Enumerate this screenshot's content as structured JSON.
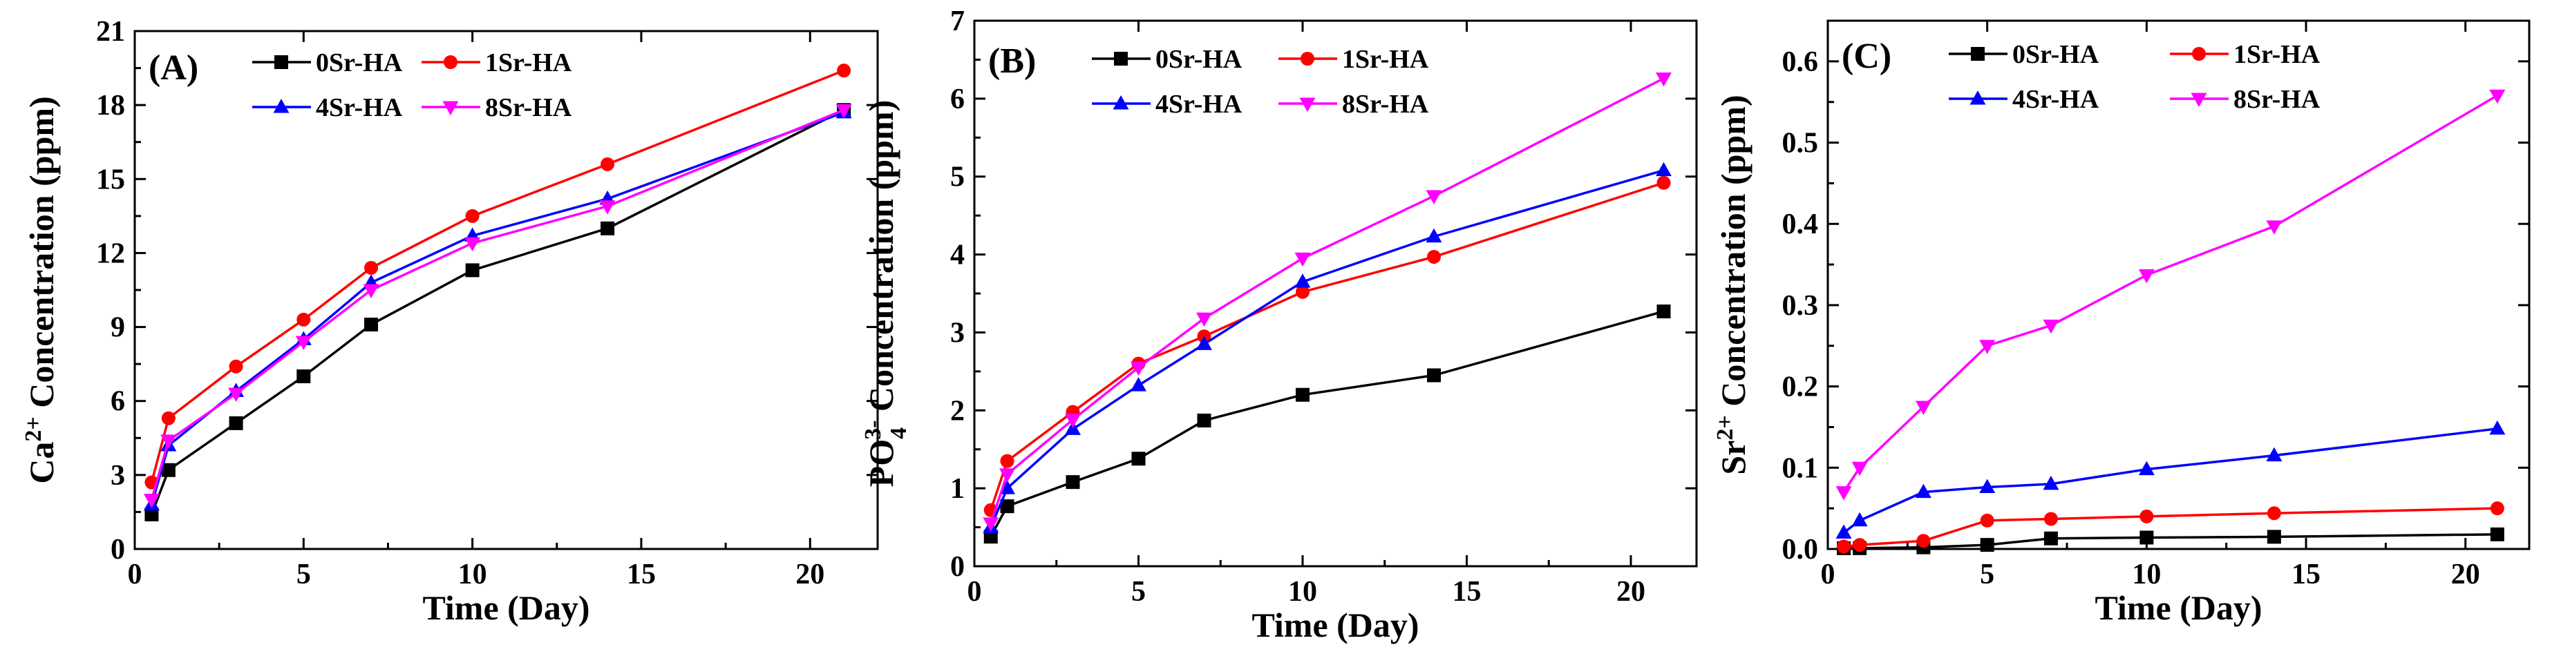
{
  "chart_data": [
    {
      "type": "line",
      "panel_label": "(A)",
      "title": "",
      "xlabel": "Time (Day)",
      "ylabel_main": "Ca",
      "ylabel_sup": "2+",
      "ylabel_rest": " Concentration (ppm)",
      "x": [
        0.5,
        1,
        3,
        5,
        7,
        10,
        14,
        21
      ],
      "xlim": [
        0,
        22
      ],
      "ylim": [
        0,
        21
      ],
      "xticks": [
        0,
        5,
        10,
        15,
        20
      ],
      "yticks": [
        0,
        3,
        6,
        9,
        12,
        15,
        18,
        21
      ],
      "legend": {
        "position": "top-center"
      },
      "series": [
        {
          "name": "0Sr-HA",
          "color": "#000000",
          "marker": "square",
          "values": [
            1.4,
            3.2,
            5.1,
            7.0,
            9.1,
            11.3,
            13.0,
            17.8
          ]
        },
        {
          "name": "1Sr-HA",
          "color": "#ff0000",
          "marker": "circle",
          "values": [
            2.7,
            5.3,
            7.4,
            9.3,
            11.4,
            13.5,
            15.6,
            19.4
          ]
        },
        {
          "name": "4Sr-HA",
          "color": "#0000ff",
          "marker": "triangle-up",
          "values": [
            1.8,
            4.2,
            6.4,
            8.5,
            10.8,
            12.7,
            14.2,
            17.7
          ]
        },
        {
          "name": "8Sr-HA",
          "color": "#ff00ff",
          "marker": "triangle-down",
          "values": [
            2.0,
            4.4,
            6.3,
            8.4,
            10.5,
            12.4,
            13.9,
            17.8
          ]
        }
      ]
    },
    {
      "type": "line",
      "panel_label": "(B)",
      "title": "",
      "xlabel": "Time (Day)",
      "ylabel_main": "PO",
      "ylabel_sub": "4",
      "ylabel_sup": "3-",
      "ylabel_rest": " Concentration (ppm)",
      "x": [
        0.5,
        1,
        3,
        5,
        7,
        10,
        14,
        21
      ],
      "xlim": [
        0,
        22
      ],
      "ylim": [
        0,
        7
      ],
      "xticks": [
        0,
        5,
        10,
        15,
        20
      ],
      "yticks": [
        0,
        1,
        2,
        3,
        4,
        5,
        6,
        7
      ],
      "legend": {
        "position": "top-center"
      },
      "series": [
        {
          "name": "0Sr-HA",
          "color": "#000000",
          "marker": "square",
          "values": [
            0.38,
            0.77,
            1.08,
            1.38,
            1.87,
            2.2,
            2.45,
            3.27
          ]
        },
        {
          "name": "1Sr-HA",
          "color": "#ff0000",
          "marker": "circle",
          "values": [
            0.72,
            1.35,
            1.98,
            2.6,
            2.95,
            3.52,
            3.97,
            4.92
          ]
        },
        {
          "name": "4Sr-HA",
          "color": "#0000ff",
          "marker": "triangle-up",
          "values": [
            0.5,
            1.0,
            1.76,
            2.32,
            2.85,
            3.65,
            4.23,
            5.08
          ]
        },
        {
          "name": "8Sr-HA",
          "color": "#ff00ff",
          "marker": "triangle-down",
          "values": [
            0.55,
            1.18,
            1.88,
            2.55,
            3.18,
            3.95,
            4.75,
            6.26
          ]
        }
      ]
    },
    {
      "type": "line",
      "panel_label": "(C)",
      "title": "",
      "xlabel": "Time (Day)",
      "ylabel_main": "Sr",
      "ylabel_sup": "2+",
      "ylabel_rest": " Concentration (ppm)",
      "x": [
        0.5,
        1,
        3,
        5,
        7,
        10,
        14,
        21
      ],
      "xlim": [
        0,
        22
      ],
      "ylim": [
        0,
        0.65
      ],
      "xticks": [
        0,
        5,
        10,
        15,
        20
      ],
      "yticks": [
        0.0,
        0.1,
        0.2,
        0.3,
        0.4,
        0.5,
        0.6
      ],
      "ytick_decimals": 1,
      "legend": {
        "position": "top-center"
      },
      "series": [
        {
          "name": "0Sr-HA",
          "color": "#000000",
          "marker": "square",
          "values": [
            0.001,
            0.001,
            0.002,
            0.005,
            0.013,
            0.014,
            0.015,
            0.018
          ]
        },
        {
          "name": "1Sr-HA",
          "color": "#ff0000",
          "marker": "circle",
          "values": [
            0.003,
            0.005,
            0.01,
            0.035,
            0.037,
            0.04,
            0.044,
            0.05
          ]
        },
        {
          "name": "4Sr-HA",
          "color": "#0000ff",
          "marker": "triangle-up",
          "values": [
            0.02,
            0.035,
            0.07,
            0.076,
            0.08,
            0.098,
            0.115,
            0.148
          ]
        },
        {
          "name": "8Sr-HA",
          "color": "#ff00ff",
          "marker": "triangle-down",
          "values": [
            0.07,
            0.1,
            0.175,
            0.25,
            0.275,
            0.337,
            0.397,
            0.558
          ]
        }
      ]
    }
  ]
}
